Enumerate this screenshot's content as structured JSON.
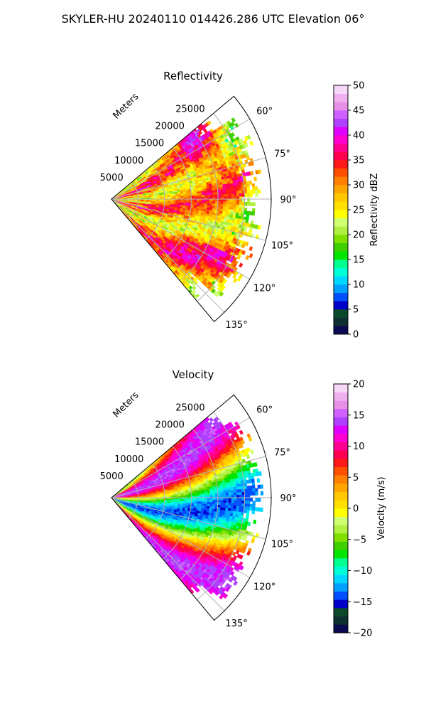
{
  "figure": {
    "suptitle": "SKYLER-HU  20240110  014426.286 UTC Elevation 06°"
  },
  "chart_data": [
    {
      "type": "heatmap",
      "projection": "polar-sector",
      "title": "Reflectivity",
      "radial_axis_label": "Meters",
      "radial_ticks": [
        5000,
        10000,
        15000,
        20000,
        25000
      ],
      "radial_tick_labels": [
        "5000",
        "10000",
        "15000",
        "20000",
        "25000"
      ],
      "radial_range": [
        0,
        30000
      ],
      "azimuth_range_deg": [
        50,
        140
      ],
      "azimuth_ticks": [
        60,
        75,
        90,
        105,
        120,
        135
      ],
      "azimuth_tick_labels": [
        "60°",
        "75°",
        "90°",
        "105°",
        "120°",
        "135°"
      ],
      "grid": true,
      "colorbar": {
        "label": "Reflectivity dBZ",
        "range": [
          0,
          50
        ],
        "ticks": [
          0,
          5,
          10,
          15,
          20,
          25,
          30,
          35,
          40,
          45,
          50
        ],
        "tick_labels": [
          "0",
          "5",
          "10",
          "15",
          "20",
          "25",
          "30",
          "35",
          "40",
          "45",
          "50"
        ],
        "colors": [
          "#0a0a50",
          "#0f3030",
          "#0a4a2a",
          "#0000c8",
          "#0050ff",
          "#00a0ff",
          "#00d8ff",
          "#00ffd8",
          "#00ff90",
          "#00e600",
          "#40d000",
          "#80e000",
          "#b0f040",
          "#d0ff70",
          "#ffff00",
          "#ffe000",
          "#ffc800",
          "#ffa500",
          "#ff8000",
          "#ff5000",
          "#ff1a1a",
          "#ff0050",
          "#ff0090",
          "#ff00d0",
          "#e000ff",
          "#b040ff",
          "#d060ff",
          "#e890e8",
          "#f0b0f0",
          "#f8d8f8"
        ]
      },
      "field_summary": "mostly 25-35 dBZ (yellow/orange) with bands up to 40 dBZ"
    },
    {
      "type": "heatmap",
      "projection": "polar-sector",
      "title": "Velocity",
      "radial_axis_label": "Meters",
      "radial_ticks": [
        5000,
        10000,
        15000,
        20000,
        25000
      ],
      "radial_tick_labels": [
        "5000",
        "10000",
        "15000",
        "20000",
        "25000"
      ],
      "radial_range": [
        0,
        30000
      ],
      "azimuth_range_deg": [
        50,
        140
      ],
      "azimuth_ticks": [
        60,
        75,
        90,
        105,
        120,
        135
      ],
      "azimuth_tick_labels": [
        "60°",
        "75°",
        "90°",
        "105°",
        "120°",
        "135°"
      ],
      "grid": true,
      "colorbar": {
        "label": "Velocity (m/s)",
        "range": [
          -20,
          20
        ],
        "ticks": [
          -20,
          -15,
          -10,
          -5,
          0,
          5,
          10,
          15,
          20
        ],
        "tick_labels": [
          "−20",
          "−15",
          "−10",
          "−5",
          "0",
          "5",
          "10",
          "15",
          "20"
        ],
        "colors": [
          "#0a0a50",
          "#0f3030",
          "#0a4a2a",
          "#0000c8",
          "#0050ff",
          "#00a0ff",
          "#00d8ff",
          "#00ffd8",
          "#00ff90",
          "#00e600",
          "#40d000",
          "#80e000",
          "#b0f040",
          "#d0ff70",
          "#ffff00",
          "#ffe000",
          "#ffc800",
          "#ffa500",
          "#ff8000",
          "#ff5000",
          "#ff1a1a",
          "#ff0050",
          "#ff0090",
          "#ff00d0",
          "#e000ff",
          "#b040ff",
          "#d060ff",
          "#e890e8",
          "#f0b0f0",
          "#f8d8f8"
        ]
      },
      "field_summary": "alternating bands: +10 to +15 m/s (red/magenta) and -5 to -12 m/s (green/cyan)"
    }
  ]
}
